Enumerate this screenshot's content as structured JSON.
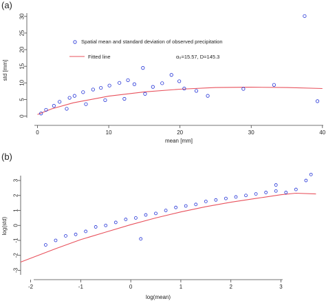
{
  "colors": {
    "points": "#1f2fd6",
    "fit": "#e8505b",
    "axis": "#444444"
  },
  "chart_data": [
    {
      "type": "scatter",
      "panel_label": "(a)",
      "xlabel": "mean [mm]",
      "ylabel": "std [mm]",
      "xlim": [
        -1.5,
        40.5
      ],
      "ylim": [
        -0.5,
        31
      ],
      "xticks": [
        0,
        10,
        20,
        30,
        40
      ],
      "yticks": [
        0,
        5,
        10,
        15,
        20,
        25,
        30
      ],
      "legend_position": "upper-left",
      "legend": [
        {
          "label": "Spatial mean and standard deviation of observed precipitation",
          "kind": "points"
        },
        {
          "label": "Fitted line",
          "kind": "line"
        }
      ],
      "annotation": "α₀=15.57,  D=145.3",
      "series": [
        {
          "name": "Spatial mean and standard deviation of observed precipitation",
          "kind": "points",
          "x": [
            0.5,
            1.2,
            2.3,
            3.1,
            4.5,
            5.2,
            6.4,
            7.8,
            8.9,
            10.1,
            11.5,
            12.7,
            13.6,
            14.8,
            16.2,
            17.5,
            18.8,
            19.9,
            20.6,
            22.3,
            23.9,
            28.9,
            33.2,
            37.5,
            39.3,
            4.1,
            6.8,
            9.5,
            12.2,
            15.1
          ],
          "y": [
            0.8,
            1.9,
            3.1,
            4.3,
            5.5,
            6.1,
            7.2,
            8.0,
            8.5,
            9.2,
            10.0,
            10.8,
            9.6,
            14.5,
            8.8,
            9.9,
            12.4,
            10.5,
            8.3,
            7.6,
            6.1,
            8.2,
            9.4,
            30.1,
            4.5,
            2.2,
            3.6,
            4.8,
            5.2,
            6.7
          ]
        },
        {
          "name": "Fitted line",
          "kind": "line",
          "x": [
            0,
            2,
            5,
            10,
            15,
            20,
            25,
            30,
            35,
            40
          ],
          "y": [
            0.5,
            2.2,
            4.0,
            6.0,
            7.3,
            8.1,
            8.6,
            8.7,
            8.6,
            8.3
          ]
        }
      ]
    },
    {
      "type": "scatter",
      "panel_label": "(b)",
      "xlabel": "log(mean)",
      "ylabel": "log(std)",
      "xlim": [
        -2.2,
        3.9
      ],
      "ylim": [
        -3.3,
        3.6
      ],
      "xticks": [
        -2,
        -1,
        0,
        1,
        2,
        3
      ],
      "yticks": [
        -3,
        -2,
        -1,
        0,
        1,
        2,
        3
      ],
      "series": [
        {
          "name": "",
          "kind": "points",
          "x": [
            -1.7,
            -1.5,
            -1.3,
            -1.1,
            -0.9,
            -0.7,
            -0.5,
            -0.3,
            -0.1,
            0.1,
            0.3,
            0.5,
            0.7,
            0.9,
            1.1,
            1.3,
            1.5,
            1.7,
            1.9,
            2.1,
            2.3,
            2.5,
            2.7,
            2.9,
            3.1,
            3.3,
            3.6,
            3.5,
            0.2,
            2.9
          ],
          "y": [
            -1.3,
            -1.0,
            -0.7,
            -0.6,
            -0.4,
            -0.1,
            0.0,
            0.2,
            0.4,
            0.5,
            0.7,
            0.8,
            1.0,
            1.2,
            1.3,
            1.4,
            1.6,
            1.7,
            1.8,
            1.9,
            2.0,
            2.1,
            2.2,
            2.3,
            2.2,
            2.4,
            3.4,
            3.0,
            -0.9,
            2.7
          ]
        },
        {
          "name": "",
          "kind": "line",
          "x": [
            -2.2,
            -1.5,
            -1.0,
            -0.5,
            0.0,
            0.5,
            1.0,
            1.5,
            2.0,
            2.5,
            3.0,
            3.3,
            3.7
          ],
          "y": [
            -2.45,
            -1.55,
            -0.95,
            -0.45,
            0.05,
            0.5,
            0.9,
            1.25,
            1.55,
            1.8,
            2.05,
            2.15,
            2.1
          ]
        }
      ]
    }
  ]
}
